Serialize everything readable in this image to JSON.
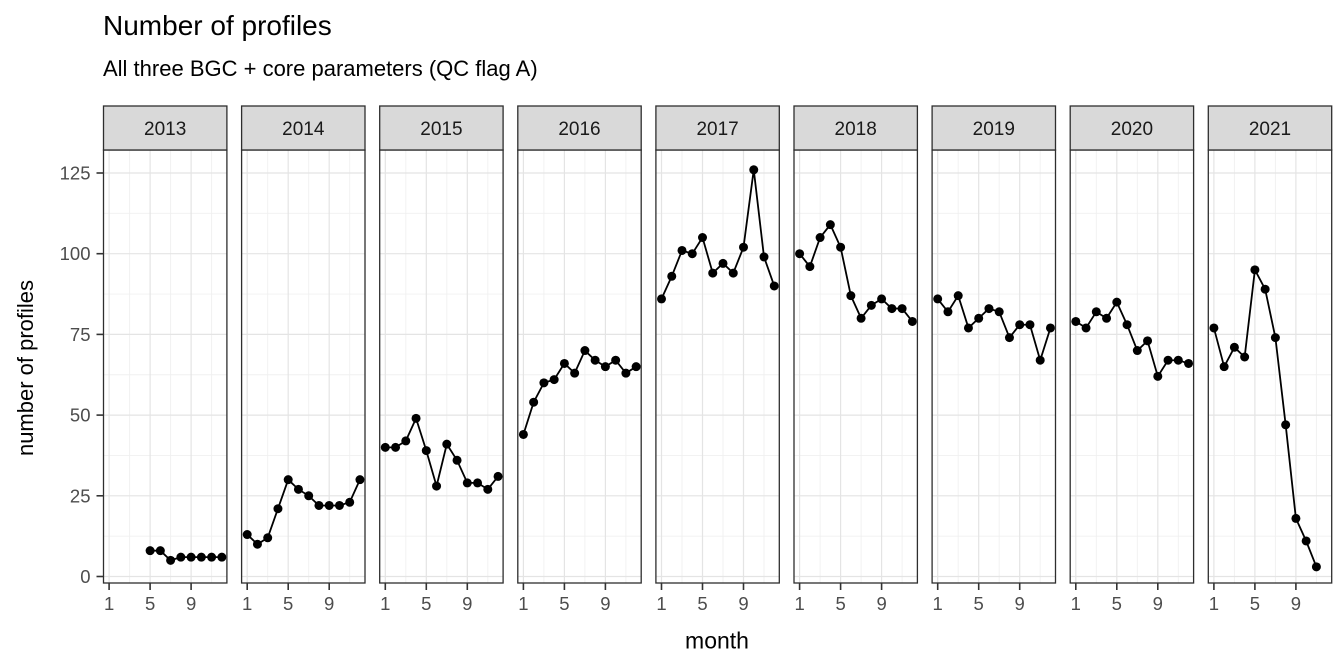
{
  "header": {
    "title": "Number of profiles",
    "subtitle": "All three BGC + core parameters (QC flag A)"
  },
  "chart_data": {
    "type": "line",
    "title": "Number of profiles",
    "subtitle": "All three BGC + core parameters (QC flag A)",
    "xlabel": "month",
    "ylabel": "number of profiles",
    "faceted_by": "year",
    "xlim": [
      1,
      12
    ],
    "ylim": [
      0,
      125
    ],
    "x_major_ticks": [
      1,
      5,
      9
    ],
    "x_minor_gridlines": [
      3,
      7,
      11
    ],
    "y_major_ticks": [
      0,
      25,
      50,
      75,
      100,
      125
    ],
    "grid": "on",
    "legend": "none",
    "facets": [
      {
        "year": "2013",
        "start_month": 5,
        "values": [
          8,
          8,
          5,
          6,
          6,
          6,
          6,
          6
        ]
      },
      {
        "year": "2014",
        "start_month": 1,
        "values": [
          13,
          10,
          12,
          21,
          30,
          27,
          25,
          22,
          22,
          22,
          23,
          30
        ]
      },
      {
        "year": "2015",
        "start_month": 1,
        "values": [
          40,
          40,
          42,
          49,
          39,
          28,
          41,
          36,
          29,
          29,
          27,
          31
        ]
      },
      {
        "year": "2016",
        "start_month": 1,
        "values": [
          44,
          54,
          60,
          61,
          66,
          63,
          70,
          67,
          65,
          67,
          63,
          65
        ]
      },
      {
        "year": "2017",
        "start_month": 1,
        "values": [
          86,
          93,
          101,
          100,
          105,
          94,
          97,
          94,
          102,
          126,
          99,
          90
        ]
      },
      {
        "year": "2018",
        "start_month": 1,
        "values": [
          100,
          96,
          105,
          109,
          102,
          87,
          80,
          84,
          86,
          83,
          83,
          79
        ]
      },
      {
        "year": "2019",
        "start_month": 1,
        "values": [
          86,
          82,
          87,
          77,
          80,
          83,
          82,
          74,
          78,
          78,
          67,
          77
        ]
      },
      {
        "year": "2020",
        "start_month": 1,
        "values": [
          79,
          77,
          82,
          80,
          85,
          78,
          70,
          73,
          62,
          67,
          67,
          66
        ]
      },
      {
        "year": "2021",
        "start_month": 1,
        "values": [
          77,
          65,
          71,
          68,
          95,
          89,
          74,
          47,
          18,
          11,
          3
        ]
      }
    ]
  },
  "style": {
    "point_color": "#000000",
    "line_color": "#000000",
    "strip_fill": "#d9d9d9",
    "strip_text_color": "#1a1a1a",
    "panel_border": "#2e2e2e",
    "grid_major": "#e4e4e4",
    "grid_minor": "#f0f0f0",
    "tick_mark_color": "#333333",
    "tick_label_color": "#4d4d4d",
    "background": "#ffffff"
  }
}
